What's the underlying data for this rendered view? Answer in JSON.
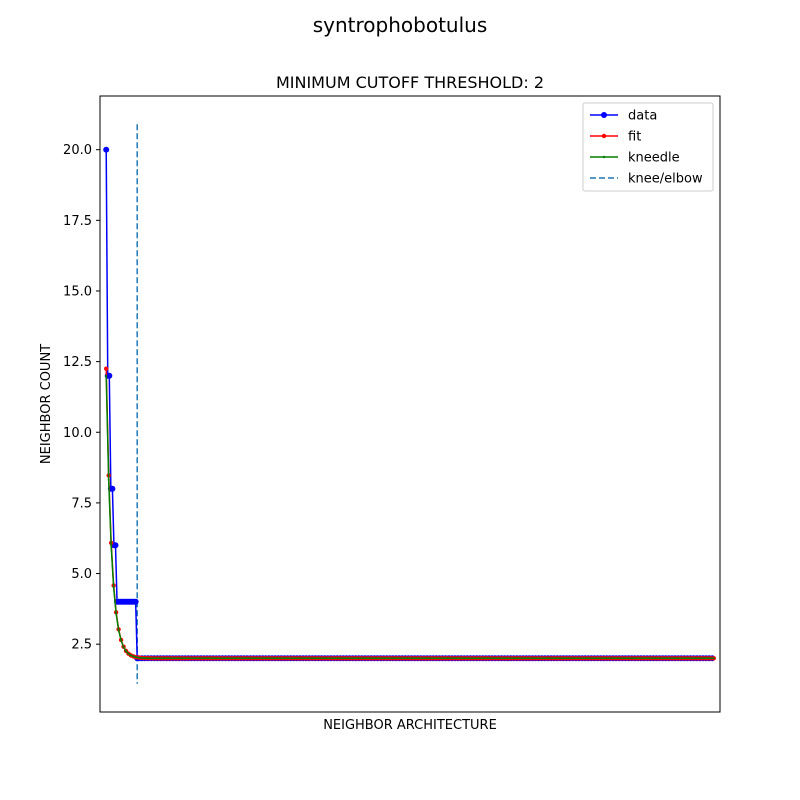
{
  "chart_data": {
    "type": "line",
    "suptitle": "syntrophobotulus",
    "title": "MINIMUM CUTOFF THRESHOLD: 2",
    "xlabel": "NEIGHBOR ARCHITECTURE",
    "ylabel": "NEIGHBOR COUNT",
    "xlim": [
      -1,
      99
    ],
    "ylim": [
      0.1,
      21.9
    ],
    "yticks": [
      2.5,
      5.0,
      7.5,
      10.0,
      12.5,
      15.0,
      17.5,
      20.0
    ],
    "ytick_labels": [
      "2.5",
      "5.0",
      "7.5",
      "10.0",
      "12.5",
      "15.0",
      "17.5",
      "20.0"
    ],
    "x_ticks_visible": false,
    "legend_position": "top-right",
    "knee_x": 5,
    "knee_line_range": [
      1.1,
      20.9
    ],
    "series": [
      {
        "name": "data",
        "color": "#0000ff",
        "marker": "circle",
        "style": "step",
        "x": [
          0,
          0.25,
          0.5,
          0.75,
          1,
          1.25,
          1.5,
          1.75,
          2,
          2.25,
          2.5,
          2.75,
          3,
          3.25,
          3.5,
          3.75,
          4,
          4.25,
          4.5,
          4.75,
          5,
          5.25
        ],
        "values": [
          20,
          12,
          12,
          8,
          8,
          6,
          6,
          4,
          4,
          4,
          4,
          4,
          4,
          4,
          4,
          4,
          4,
          4,
          4,
          4,
          2,
          2
        ],
        "tail_start": 5.25,
        "tail_end": 98,
        "tail_value": 2
      },
      {
        "name": "fit",
        "color": "#ff0000",
        "marker": "dot",
        "model": "exponential decay",
        "params": {
          "a": 10.25,
          "k": 1.15,
          "c": 2.0
        },
        "x_range": [
          0,
          98
        ],
        "step": 0.4
      },
      {
        "name": "kneedle",
        "color": "#008000",
        "marker": "point",
        "model": "exponential decay",
        "params": {
          "a": 10.0,
          "k": 1.15,
          "c": 2.0
        },
        "x_range": [
          0,
          98
        ],
        "step": 0.4
      },
      {
        "name": "knee/elbow",
        "color": "#1f77b4",
        "style": "dashed"
      }
    ]
  }
}
